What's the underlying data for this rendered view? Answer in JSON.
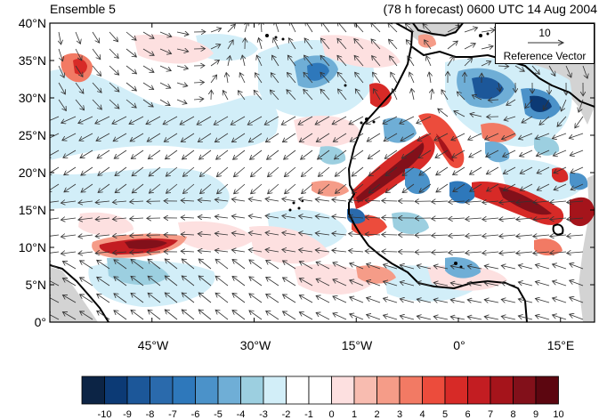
{
  "title_left": "Ensemble 5",
  "title_right": "(78 h forecast) 0600 UTC 14 Aug 2004",
  "reference": {
    "magnitude": "10",
    "label": "Reference Vector"
  },
  "lat_labels": [
    "40°N",
    "35°N",
    "30°N",
    "25°N",
    "20°N",
    "15°N",
    "10°N",
    "5°N",
    "0°"
  ],
  "lon_labels": [
    "45°W",
    "30°W",
    "15°W",
    "0°",
    "15°E"
  ],
  "colorbar": {
    "labels": [
      "-10",
      "-9",
      "-8",
      "-7",
      "-6",
      "-5",
      "-4",
      "-3",
      "-2",
      "-1",
      "0",
      "1",
      "2",
      "3",
      "4",
      "5",
      "6",
      "7",
      "8",
      "9",
      "10"
    ],
    "colors": [
      "#0c2445",
      "#0c3a75",
      "#1c5799",
      "#2a6aac",
      "#2e78bb",
      "#4b92c9",
      "#6faed6",
      "#9ccfe0",
      "#d2eef8",
      "#ffffff",
      "#ffffff",
      "#fde0e0",
      "#f8bcb0",
      "#f59c88",
      "#f27a64",
      "#ec4c3c",
      "#d72a27",
      "#c31d22",
      "#a5141b",
      "#82101a",
      "#5c0610"
    ]
  },
  "map": {
    "lon_range": [
      -60,
      20
    ],
    "lat_range": [
      0,
      40
    ],
    "colors": {
      "ocean": "#ffffff",
      "land_mask": "#d3d3d3"
    }
  }
}
